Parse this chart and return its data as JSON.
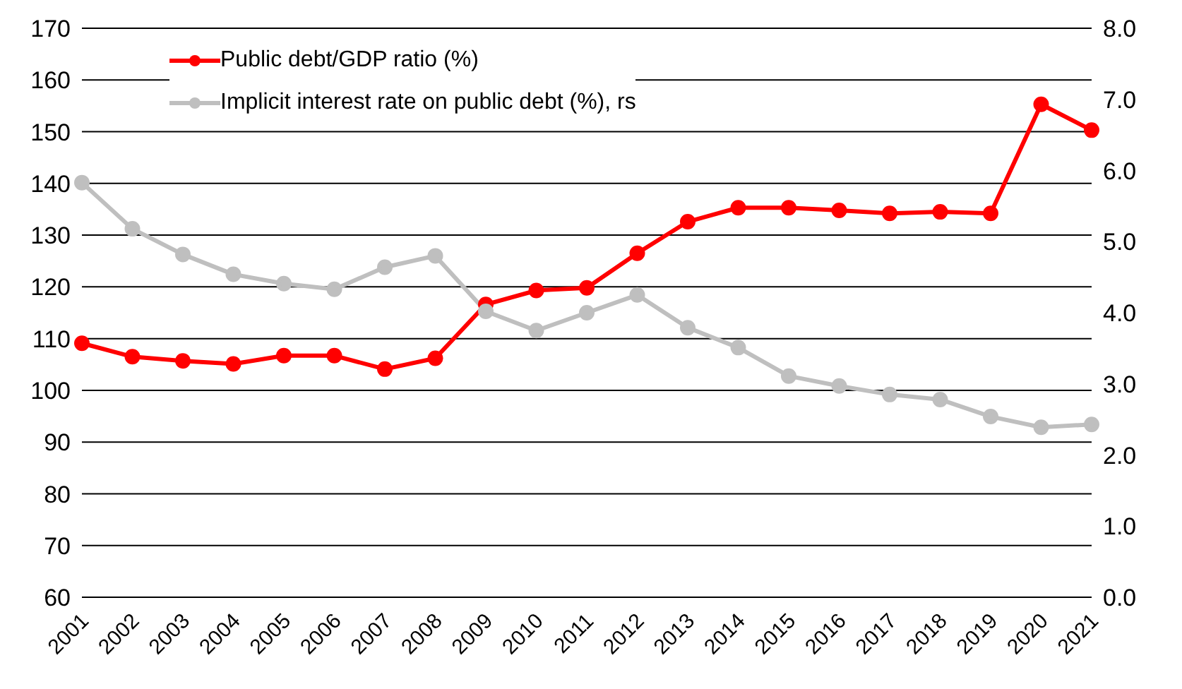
{
  "chart_data": {
    "type": "line",
    "categories": [
      "2001",
      "2002",
      "2003",
      "2004",
      "2005",
      "2006",
      "2007",
      "2008",
      "2009",
      "2010",
      "2011",
      "2012",
      "2013",
      "2014",
      "2015",
      "2016",
      "2017",
      "2018",
      "2019",
      "2020",
      "2021"
    ],
    "series": [
      {
        "name": "Public debt/GDP ratio (%)",
        "color": "#ff0000",
        "values": [
          109.1,
          106.5,
          105.7,
          105.1,
          106.7,
          106.7,
          104.1,
          106.2,
          116.6,
          119.3,
          119.8,
          126.5,
          132.6,
          135.3,
          135.3,
          134.8,
          134.2,
          134.5,
          134.2,
          155.3,
          150.3
        ]
      },
      {
        "name": "Implicit interest rate on public debt (%), rs",
        "color": "#bfbfbf",
        "axis": "y2",
        "values": [
          5.83,
          5.18,
          4.82,
          4.54,
          4.41,
          4.33,
          4.64,
          4.8,
          4.02,
          3.75,
          4.0,
          4.25,
          3.79,
          3.51,
          3.11,
          2.97,
          2.85,
          2.78,
          2.54,
          2.39,
          2.43
        ]
      }
    ],
    "ylim": [
      60,
      170
    ],
    "yticks": [
      60,
      70,
      80,
      90,
      100,
      110,
      120,
      130,
      140,
      150,
      160,
      170
    ],
    "y2lim": [
      0,
      8
    ],
    "y2ticks": [
      {
        "value": 0,
        "label": "0.0"
      },
      {
        "value": 1,
        "label": "1.0"
      },
      {
        "value": 2,
        "label": "2.0"
      },
      {
        "value": 3,
        "label": "3.0"
      },
      {
        "value": 4,
        "label": "4.0"
      },
      {
        "value": 5,
        "label": "5.0"
      },
      {
        "value": 6,
        "label": "6.0"
      },
      {
        "value": 7,
        "label": "7.0"
      },
      {
        "value": 8,
        "label": "8.0"
      }
    ],
    "grid": "y",
    "legend": "top left",
    "marker": "circle",
    "line_style": "solid"
  }
}
